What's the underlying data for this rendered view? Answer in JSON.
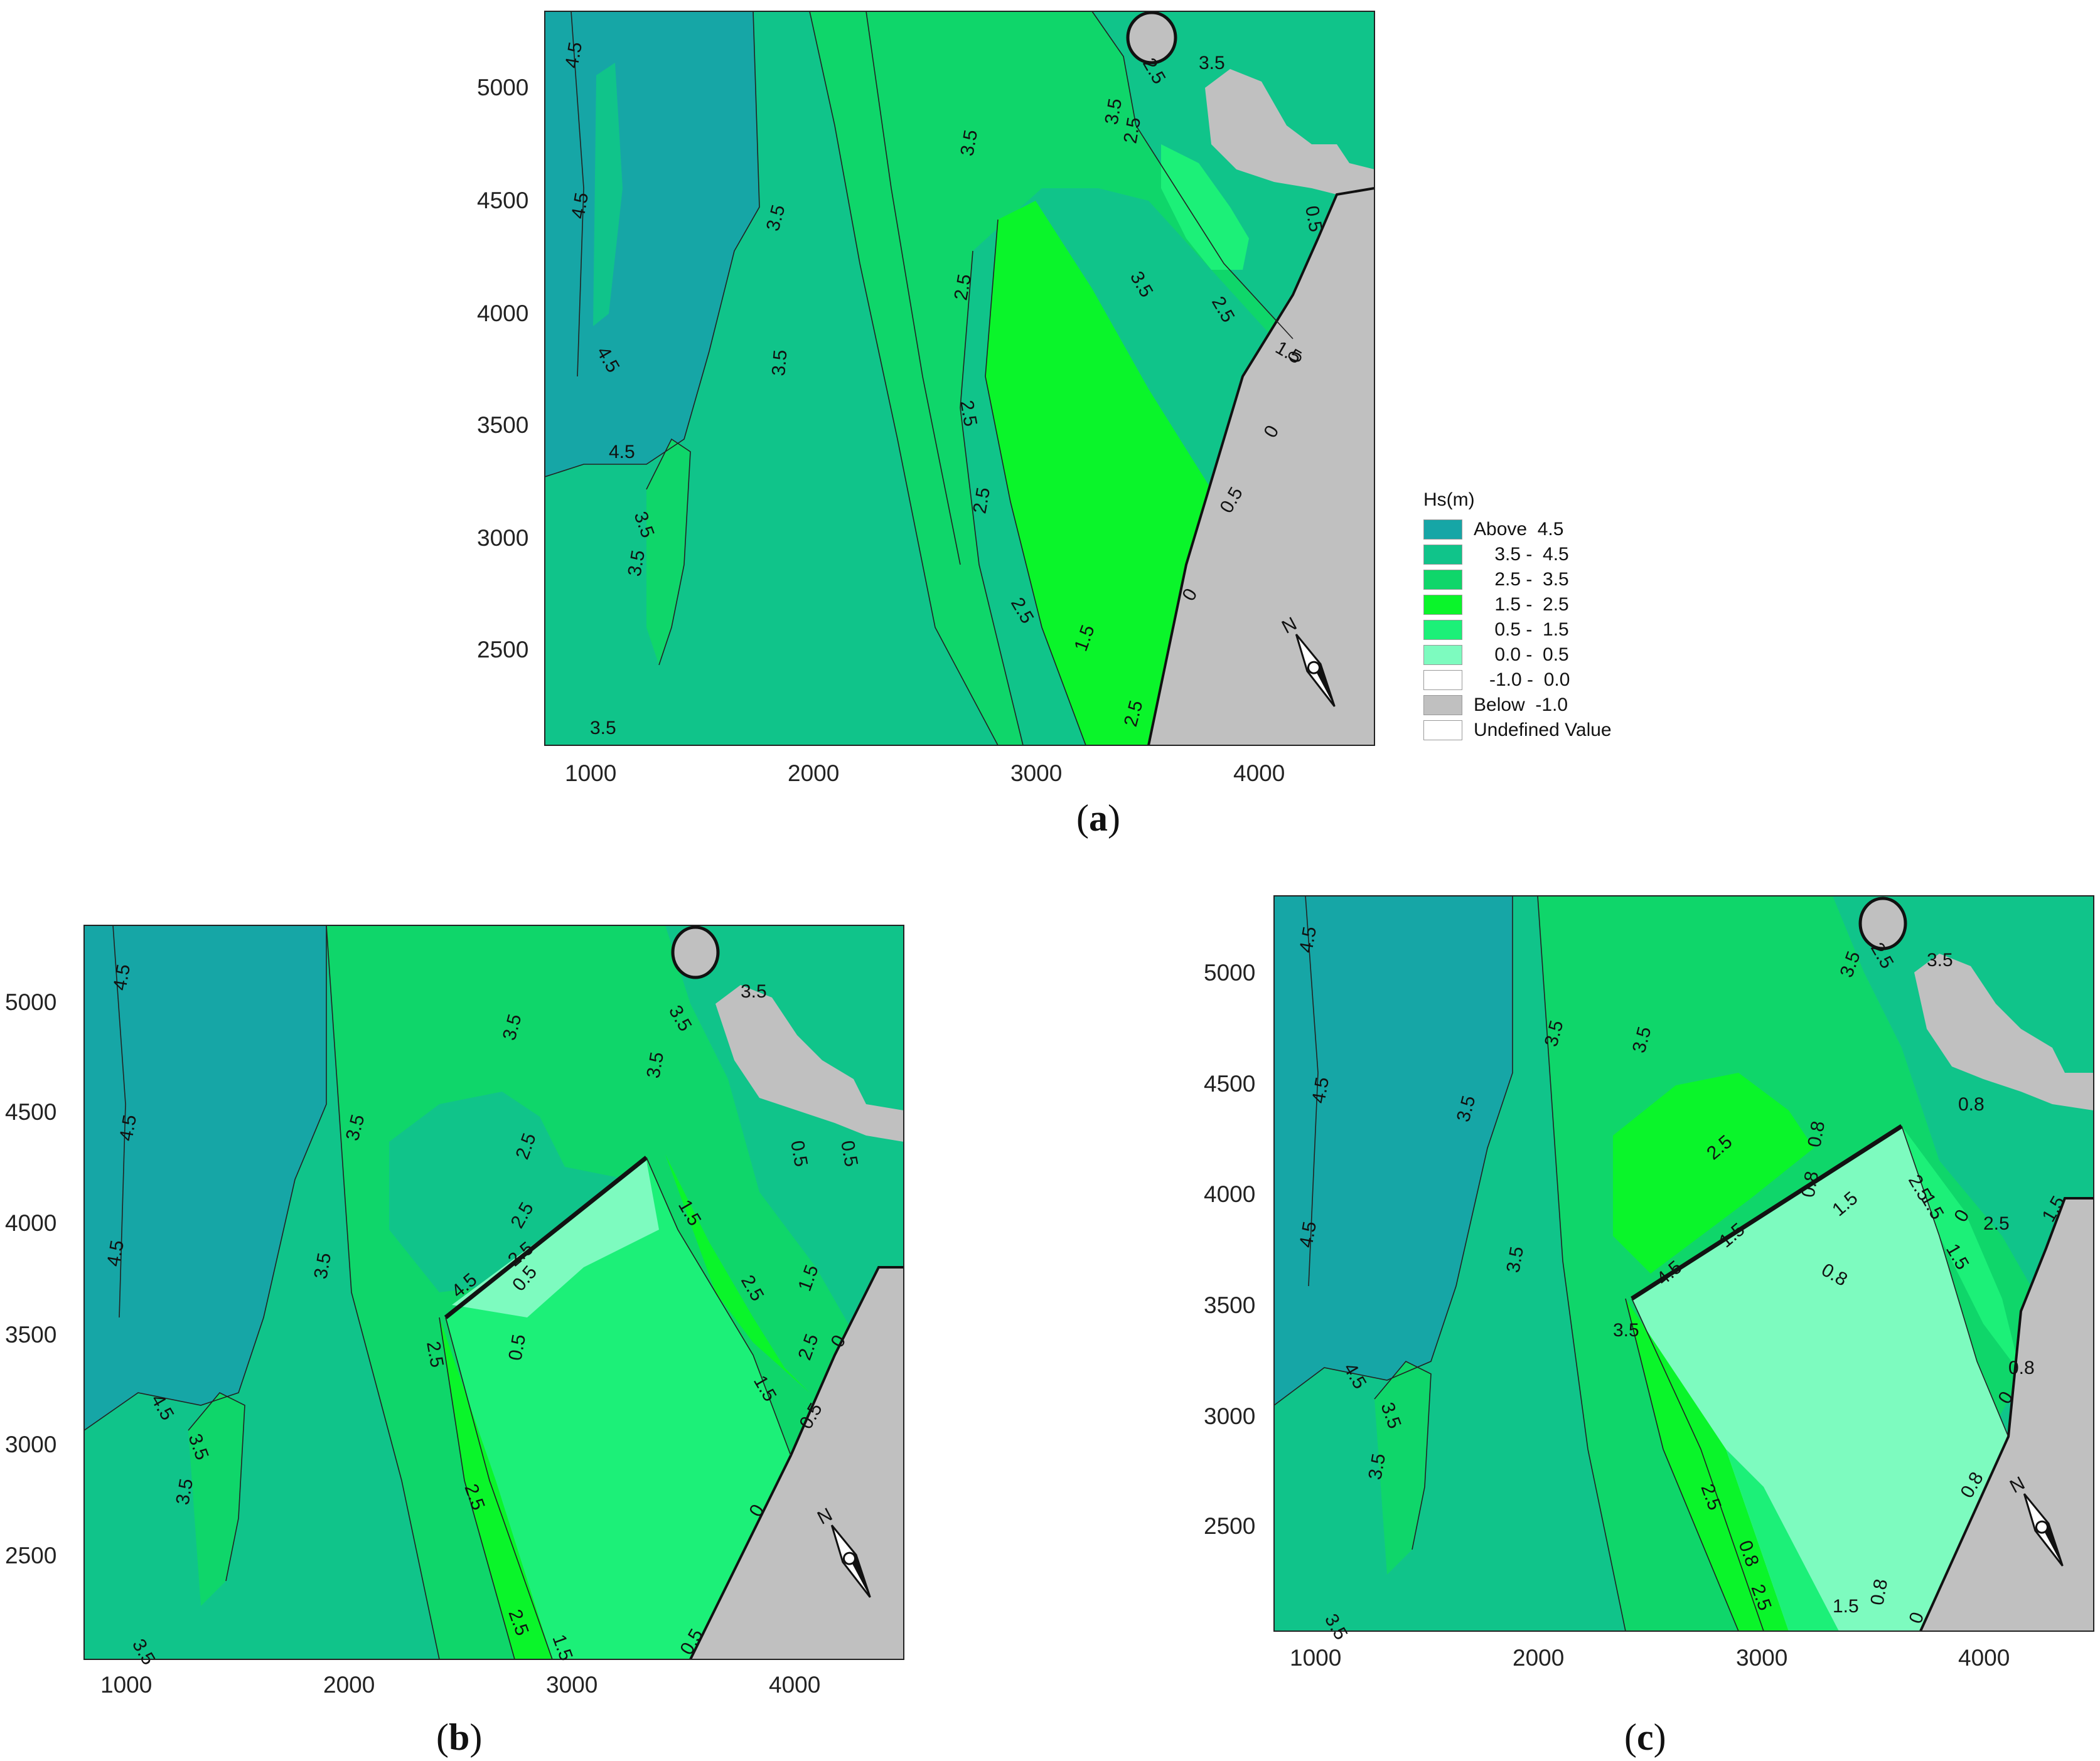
{
  "colors": {
    "above_4_5": "#16a6a6",
    "b3_5_4_5": "#10c48a",
    "b2_5_3_5": "#0fd66a",
    "b1_5_2_5": "#0af52a",
    "b0_5_1_5": "#1cf078",
    "b0_0_0_5": "#7dfbbf",
    "neg1_0_0": "#ffffff",
    "below": "#c0c0c0",
    "undefined": "#ffffff"
  },
  "legend": {
    "title": "Hs(m)",
    "items": [
      {
        "label": "Above  4.5",
        "color": "#16a6a6"
      },
      {
        "label": "    3.5 -  4.5",
        "color": "#10c48a"
      },
      {
        "label": "    2.5 -  3.5",
        "color": "#0fd66a"
      },
      {
        "label": "    1.5 -  2.5",
        "color": "#0af52a"
      },
      {
        "label": "    0.5 -  1.5",
        "color": "#1cf078"
      },
      {
        "label": "    0.0 -  0.5",
        "color": "#7dfbbf"
      },
      {
        "label": "   -1.0 -  0.0",
        "color": "#ffffff"
      },
      {
        "label": "Below  -1.0",
        "color": "#c0c0c0"
      },
      {
        "label": "Undefined Value",
        "color": "#ffffff"
      }
    ]
  },
  "axes": {
    "x_ticks": [
      "1000",
      "2000",
      "3000",
      "4000"
    ],
    "y_ticks": [
      "2500",
      "3000",
      "3500",
      "4000",
      "4500",
      "5000"
    ]
  },
  "north_label": "N",
  "panels": [
    {
      "caption_letter": "a",
      "labels": [
        "4.5",
        "4.5",
        "4.5",
        "4.5",
        "3.5",
        "3.5",
        "3.5",
        "3.5",
        "3.5",
        "3.5",
        "2.5",
        "2.5",
        "2.5",
        "2.5",
        "2.5",
        "2.5",
        "3.5",
        "3.5",
        "2.5",
        "1.5",
        "1.5",
        "0",
        "0",
        "0.5",
        "0",
        "0.5",
        "3.5",
        "2.5"
      ]
    },
    {
      "caption_letter": "b",
      "labels": [
        "4.5",
        "4.5",
        "4.5",
        "4.5",
        "3.5",
        "3.5",
        "3.5",
        "3.5",
        "3.5",
        "2.5",
        "2.5",
        "2.5",
        "4.5",
        "2.5",
        "0.5",
        "0.5",
        "1.5",
        "2.5",
        "1.5",
        "1.5",
        "2.5",
        "0",
        "0.5",
        "0",
        "0.5",
        "2.5",
        "1.5",
        "3.5",
        "2.5",
        "3.5",
        "0.5",
        "0.5",
        "3.5"
      ]
    },
    {
      "caption_letter": "c",
      "labels": [
        "4.5",
        "4.5",
        "4.5",
        "4.5",
        "3.5",
        "3.5",
        "3.5",
        "3.5",
        "3.5",
        "3.5",
        "2.5",
        "1.5",
        "4.5",
        "3.5",
        "0.8",
        "1.5",
        "2.5",
        "1.5",
        "0.8",
        "0.8",
        "0",
        "0.8",
        "2.5",
        "0.8",
        "1.5",
        "0.8",
        "0",
        "2.5",
        "1.5",
        "0.8",
        "3.5",
        "2.5",
        "3.5",
        "0.8",
        "0",
        "3.5"
      ]
    }
  ]
}
